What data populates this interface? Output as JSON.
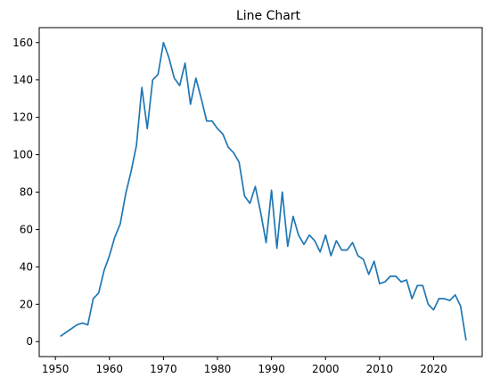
{
  "chart_data": {
    "type": "line",
    "title": "Line Chart",
    "xlabel": "",
    "ylabel": "",
    "xlim": [
      1947,
      2029
    ],
    "ylim": [
      -8,
      168
    ],
    "x_ticks": [
      1950,
      1960,
      1970,
      1980,
      1990,
      2000,
      2010,
      2020
    ],
    "y_ticks": [
      0,
      20,
      40,
      60,
      80,
      100,
      120,
      140,
      160
    ],
    "grid": false,
    "series": [
      {
        "color": "#1f77b4",
        "points": [
          [
            1951,
            3
          ],
          [
            1952,
            5
          ],
          [
            1953,
            7
          ],
          [
            1954,
            9
          ],
          [
            1955,
            10
          ],
          [
            1956,
            9
          ],
          [
            1957,
            23
          ],
          [
            1958,
            26
          ],
          [
            1959,
            38
          ],
          [
            1960,
            46
          ],
          [
            1961,
            56
          ],
          [
            1962,
            63
          ],
          [
            1963,
            79
          ],
          [
            1964,
            91
          ],
          [
            1965,
            105
          ],
          [
            1966,
            136
          ],
          [
            1967,
            114
          ],
          [
            1968,
            140
          ],
          [
            1969,
            143
          ],
          [
            1970,
            160
          ],
          [
            1971,
            152
          ],
          [
            1972,
            141
          ],
          [
            1973,
            137
          ],
          [
            1974,
            149
          ],
          [
            1975,
            127
          ],
          [
            1976,
            141
          ],
          [
            1977,
            130
          ],
          [
            1978,
            118
          ],
          [
            1979,
            118
          ],
          [
            1980,
            114
          ],
          [
            1981,
            111
          ],
          [
            1982,
            104
          ],
          [
            1983,
            101
          ],
          [
            1984,
            96
          ],
          [
            1985,
            78
          ],
          [
            1986,
            74
          ],
          [
            1987,
            83
          ],
          [
            1988,
            69
          ],
          [
            1989,
            53
          ],
          [
            1990,
            81
          ],
          [
            1991,
            50
          ],
          [
            1992,
            80
          ],
          [
            1993,
            51
          ],
          [
            1994,
            67
          ],
          [
            1995,
            57
          ],
          [
            1996,
            52
          ],
          [
            1997,
            57
          ],
          [
            1998,
            54
          ],
          [
            1999,
            48
          ],
          [
            2000,
            57
          ],
          [
            2001,
            46
          ],
          [
            2002,
            54
          ],
          [
            2003,
            49
          ],
          [
            2004,
            49
          ],
          [
            2005,
            53
          ],
          [
            2006,
            46
          ],
          [
            2007,
            44
          ],
          [
            2008,
            36
          ],
          [
            2009,
            43
          ],
          [
            2010,
            31
          ],
          [
            2011,
            32
          ],
          [
            2012,
            35
          ],
          [
            2013,
            35
          ],
          [
            2014,
            32
          ],
          [
            2015,
            33
          ],
          [
            2016,
            23
          ],
          [
            2017,
            30
          ],
          [
            2018,
            30
          ],
          [
            2019,
            20
          ],
          [
            2020,
            17
          ],
          [
            2021,
            23
          ],
          [
            2022,
            23
          ],
          [
            2023,
            22
          ],
          [
            2024,
            25
          ],
          [
            2025,
            19
          ],
          [
            2026,
            1
          ]
        ]
      }
    ]
  }
}
